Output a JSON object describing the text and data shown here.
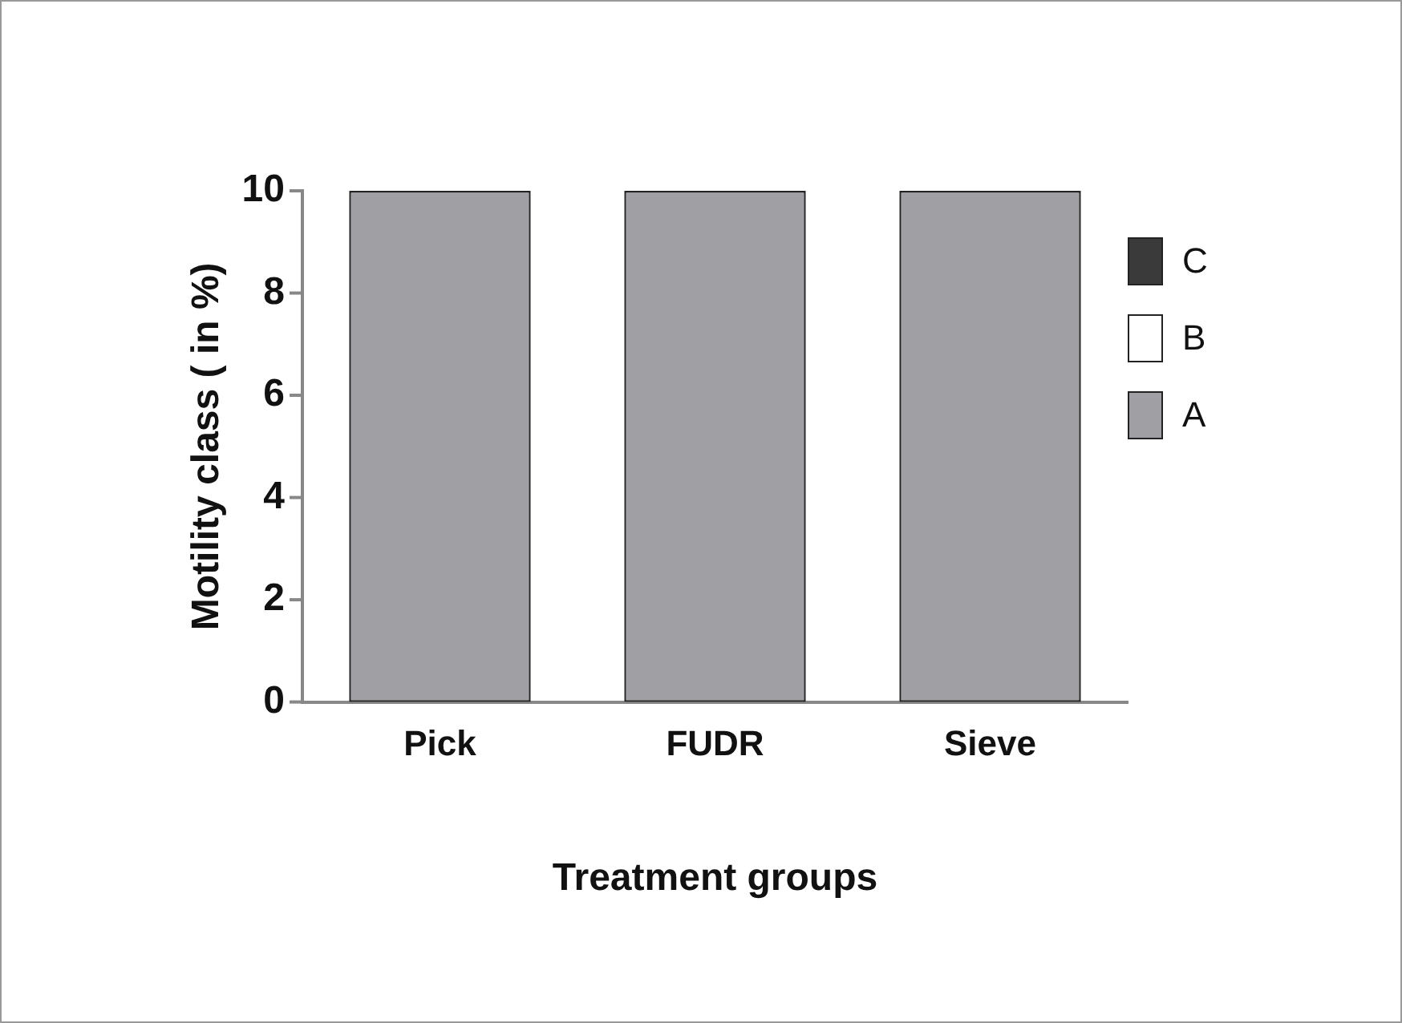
{
  "chart_data": {
    "type": "bar",
    "xlabel": "Treatment groups",
    "ylabel": "Motility class ( in %)",
    "categories": [
      "Pick",
      "FUDR",
      "Sieve"
    ],
    "stacked": true,
    "series": [
      {
        "name": "A",
        "color": "#a09fa4",
        "values": [
          10,
          10,
          10
        ]
      },
      {
        "name": "B",
        "color": "#ffffff",
        "values": [
          0,
          0,
          0
        ]
      },
      {
        "name": "C",
        "color": "#3a3a3a",
        "values": [
          0,
          0,
          0
        ]
      }
    ],
    "ylim": [
      0,
      10
    ],
    "yticks": [
      0,
      2,
      4,
      6,
      8,
      10
    ],
    "grid": false,
    "legend": "top right"
  }
}
